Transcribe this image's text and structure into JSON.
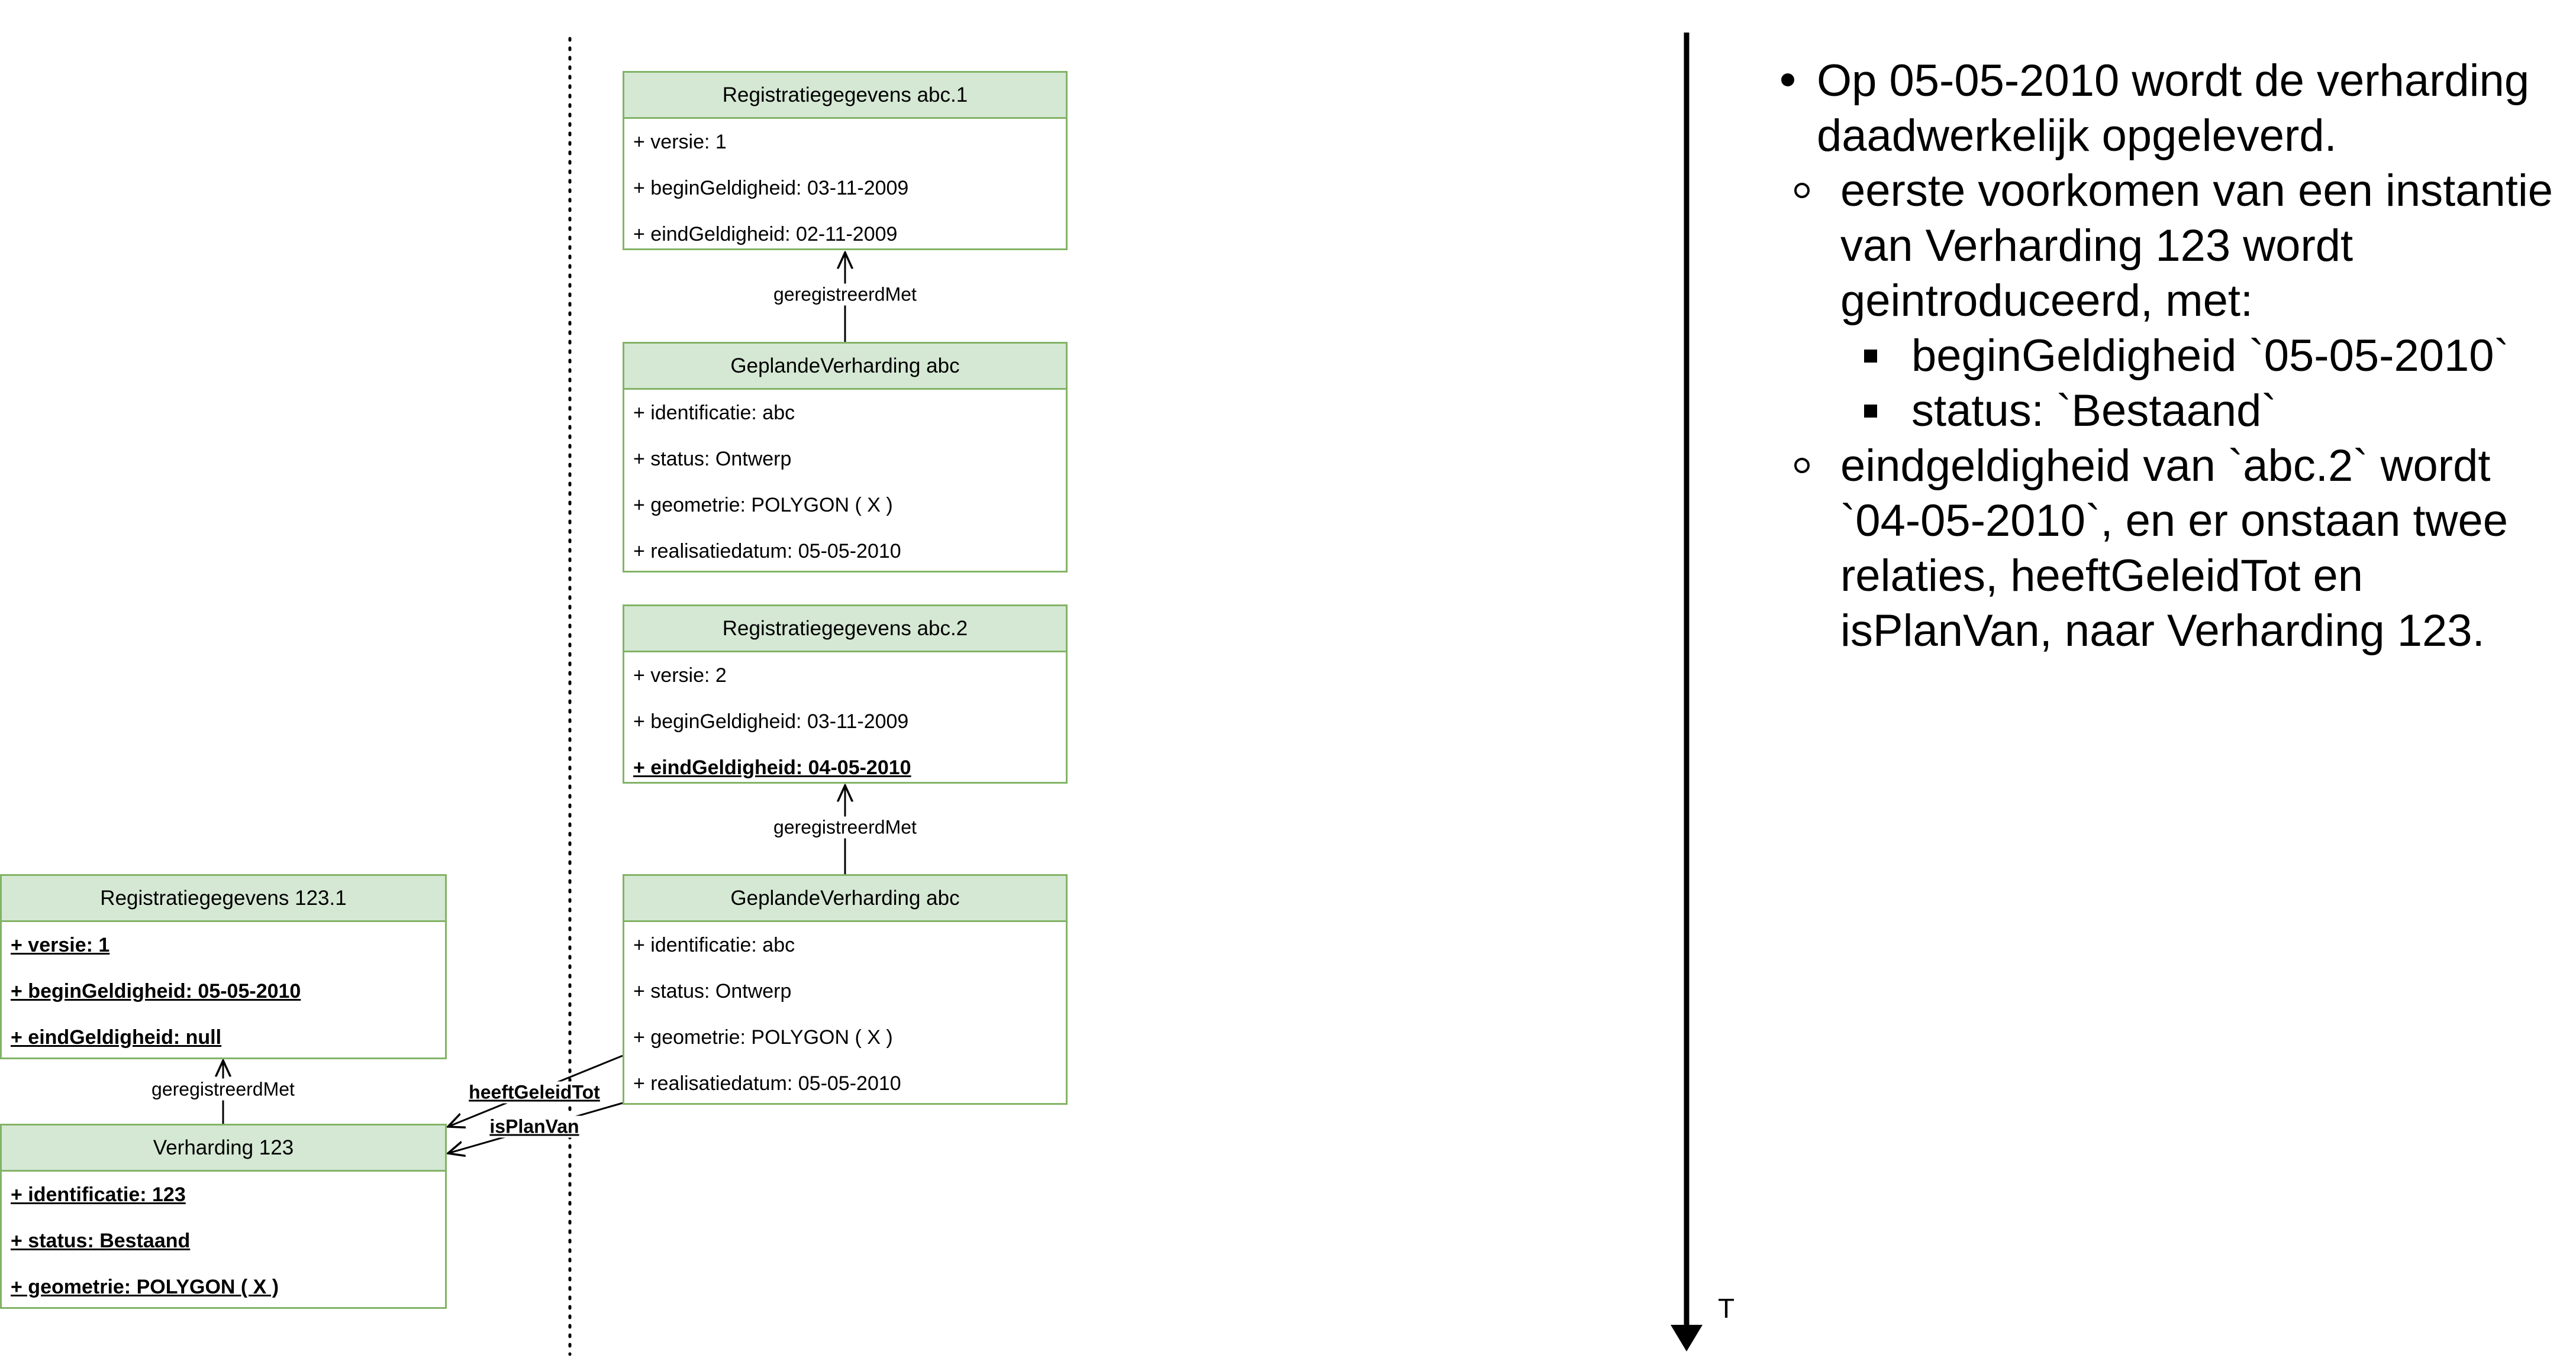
{
  "boxes": {
    "reg_abc1": {
      "title": "Registratiegegevens abc.1",
      "attrs": [
        "+ versie: 1",
        "+ beginGeldigheid: 03-11-2009",
        "+ eindGeldigheid: 02-11-2009"
      ]
    },
    "gv_abc_1": {
      "title": "GeplandeVerharding abc",
      "attrs": [
        "+ identificatie: abc",
        "+ status: Ontwerp",
        "+ geometrie: POLYGON ( X )",
        "+ realisatiedatum: 05-05-2010"
      ]
    },
    "reg_abc2": {
      "title": "Registratiegegevens abc.2",
      "attrs": [
        "+ versie: 2",
        "+ beginGeldigheid: 03-11-2009",
        "+ eindGeldigheid: 04-05-2010"
      ]
    },
    "gv_abc_2": {
      "title": "GeplandeVerharding abc",
      "attrs": [
        "+ identificatie: abc",
        "+ status: Ontwerp",
        "+ geometrie: POLYGON ( X )",
        "+ realisatiedatum: 05-05-2010"
      ]
    },
    "reg_123": {
      "title": "Registratiegegevens 123.1",
      "attrs": [
        "+ versie: 1",
        "+ beginGeldigheid: 05-05-2010",
        "+ eindGeldigheid: null"
      ]
    },
    "verh_123": {
      "title": "Verharding 123",
      "attrs": [
        "+ identificatie: 123",
        "+ status: Bestaand",
        "+ geometrie: POLYGON ( X )"
      ]
    }
  },
  "edges": {
    "geregistreerdMet_1": "geregistreerdMet",
    "geregistreerdMet_2": "geregistreerdMet",
    "geregistreerdMet_3": "geregistreerdMet",
    "heeftGeleidTot": "heeftGeleidTot",
    "isPlanVan": "isPlanVan"
  },
  "timeline_label": "T",
  "notes": {
    "item1": "Op 05-05-2010 wordt de verharding daadwerkelijk opgeleverd.",
    "sub1": "eerste voorkomen van een instantie van Verharding 123 wordt geintroduceerd, met:",
    "sub1a": "beginGeldigheid `05-05-2010`",
    "sub1b": "status: `Bestaand`",
    "sub2": "eindgeldigheid van `abc.2` wordt `04-05-2010`, en er onstaan twee relaties, heeftGeleidTot en isPlanVan, naar Verharding 123."
  },
  "colors": {
    "box_fill": "#d5e8d4",
    "box_border": "#82b366"
  }
}
